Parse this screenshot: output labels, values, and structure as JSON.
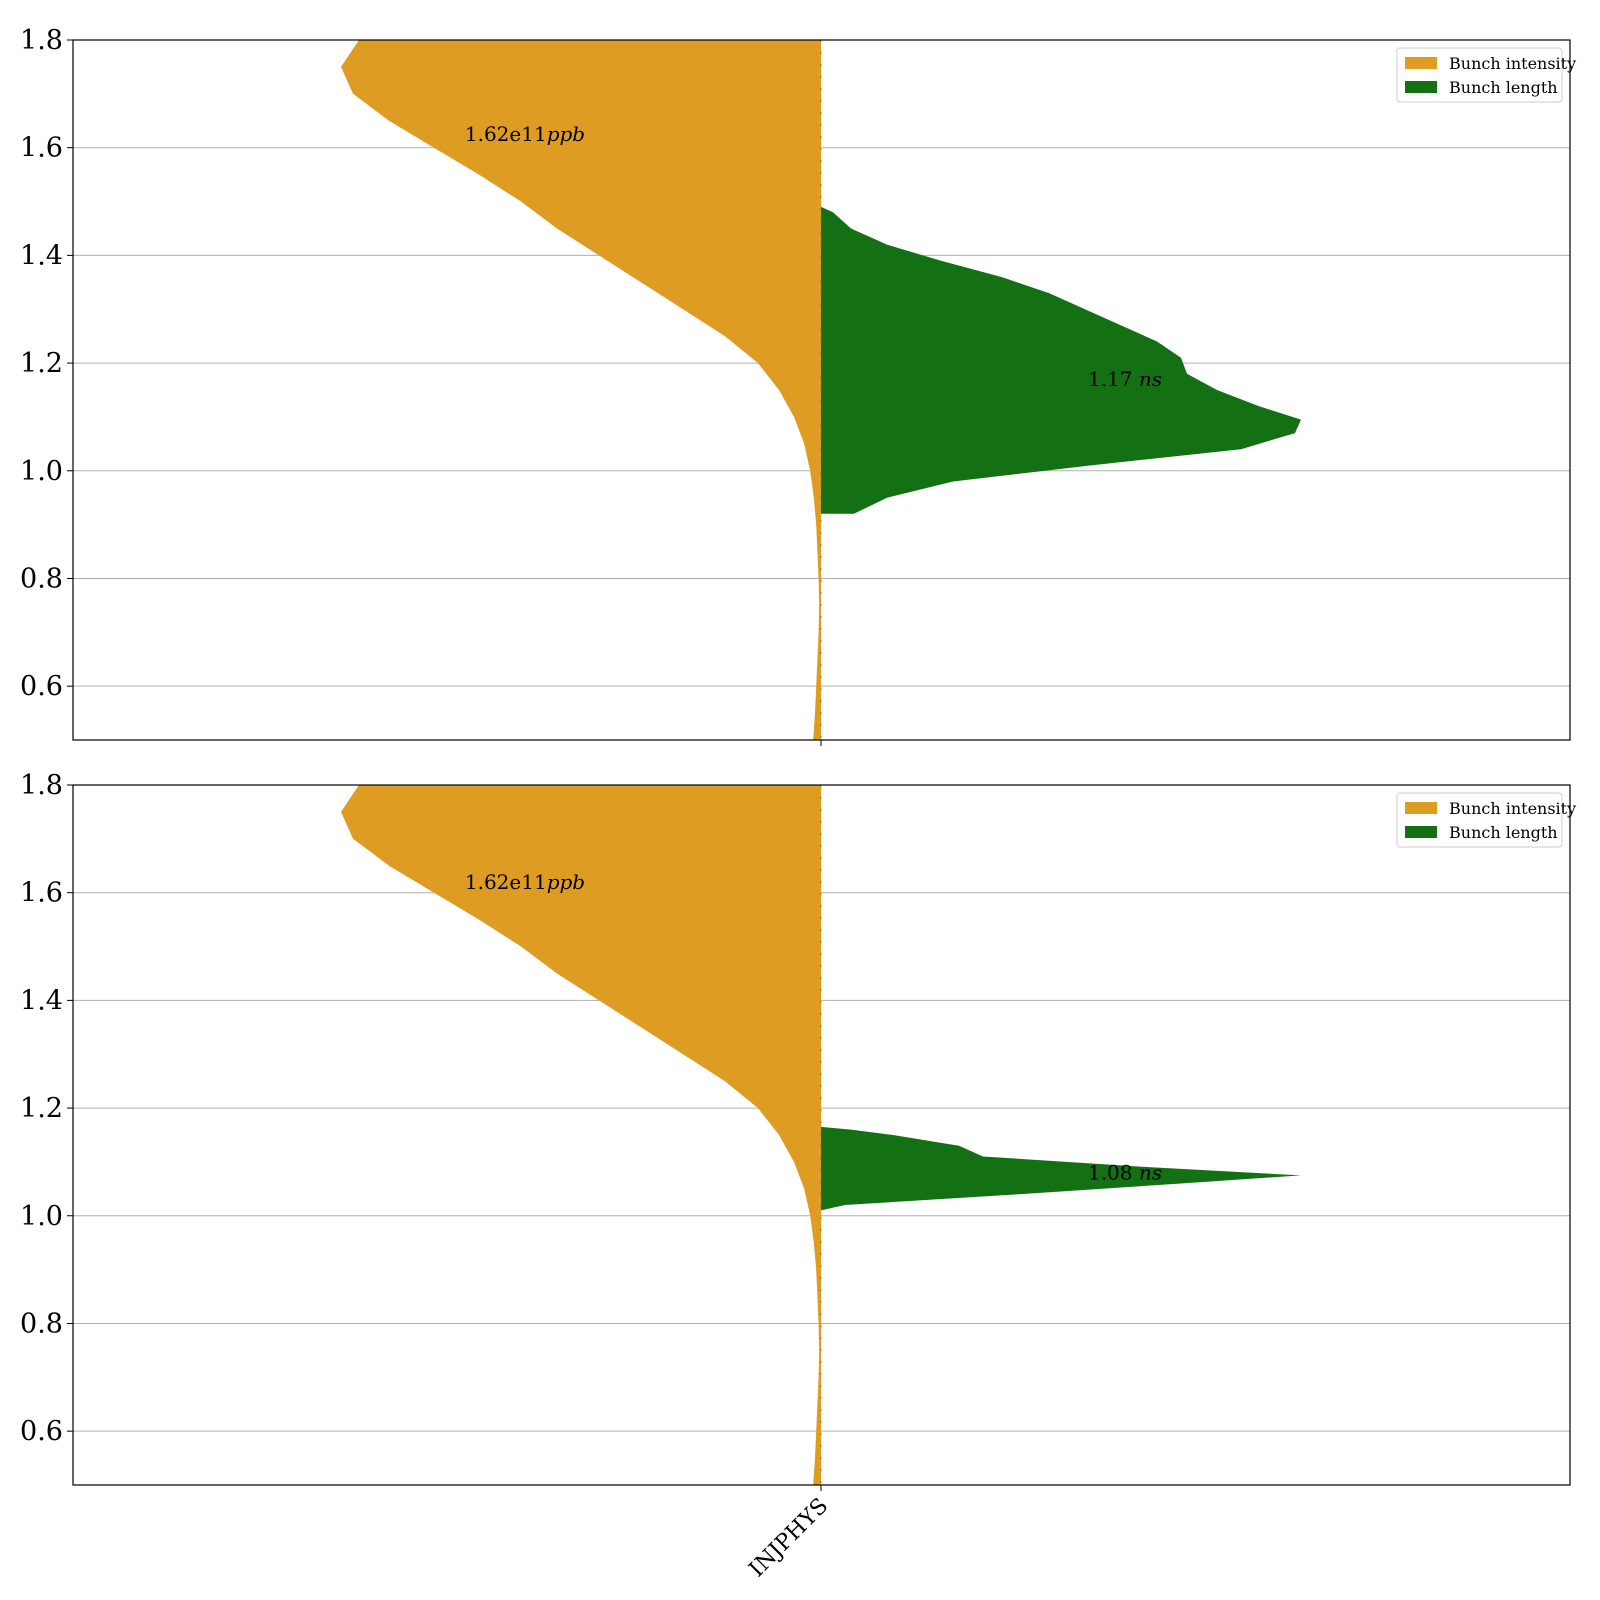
{
  "chart_data": [
    {
      "type": "violin",
      "ylim": [
        0.5,
        1.8
      ],
      "yticks": [
        "0.6",
        "0.8",
        "1.0",
        "1.2",
        "1.4",
        "1.6",
        "1.8"
      ],
      "grid": "horizontal",
      "legend_placement": "top-right",
      "category": "INJPHYS",
      "series": [
        {
          "name": "Bunch intensity",
          "side": "left",
          "color": "#de9c22",
          "annotation": {
            "value": "1.62e11",
            "unit": "ppb",
            "y": 1.625
          },
          "profile_y": [
            0.5,
            0.55,
            0.6,
            0.65,
            0.7,
            0.75,
            0.8,
            0.85,
            0.9,
            0.95,
            1.0,
            1.05,
            1.1,
            1.15,
            1.2,
            1.25,
            1.3,
            1.35,
            1.4,
            1.45,
            1.5,
            1.55,
            1.6,
            1.65,
            1.7,
            1.75,
            1.8
          ],
          "profile_width": [
            0.013,
            0.01,
            0.008,
            0.006,
            0.004,
            0.003,
            0.004,
            0.006,
            0.008,
            0.012,
            0.018,
            0.028,
            0.045,
            0.07,
            0.105,
            0.16,
            0.23,
            0.3,
            0.37,
            0.44,
            0.5,
            0.57,
            0.645,
            0.72,
            0.78,
            0.8,
            0.77
          ]
        },
        {
          "name": "Bunch length",
          "side": "right",
          "color": "#137114",
          "annotation": {
            "value": "1.17",
            "unit": "ns",
            "y": 1.17
          },
          "profile_y": [
            0.92,
            0.95,
            0.98,
            1.01,
            1.04,
            1.07,
            1.095,
            1.12,
            1.15,
            1.18,
            1.21,
            1.24,
            1.27,
            1.3,
            1.33,
            1.36,
            1.39,
            1.42,
            1.45,
            1.48,
            1.49
          ],
          "profile_width": [
            0.055,
            0.11,
            0.22,
            0.45,
            0.7,
            0.79,
            0.8,
            0.73,
            0.66,
            0.61,
            0.6,
            0.56,
            0.5,
            0.44,
            0.38,
            0.3,
            0.2,
            0.11,
            0.05,
            0.02,
            0.0
          ]
        }
      ]
    },
    {
      "type": "violin",
      "ylim": [
        0.5,
        1.8
      ],
      "yticks": [
        "0.6",
        "0.8",
        "1.0",
        "1.2",
        "1.4",
        "1.6",
        "1.8"
      ],
      "grid": "horizontal",
      "legend_placement": "top-right",
      "category": "INJPHYS",
      "series": [
        {
          "name": "Bunch intensity",
          "side": "left",
          "color": "#de9c22",
          "annotation": {
            "value": "1.62e11",
            "unit": "ppb",
            "y": 1.62
          },
          "profile_y": [
            0.5,
            0.55,
            0.6,
            0.65,
            0.7,
            0.75,
            0.8,
            0.85,
            0.9,
            0.95,
            1.0,
            1.05,
            1.1,
            1.15,
            1.2,
            1.25,
            1.3,
            1.35,
            1.4,
            1.45,
            1.5,
            1.55,
            1.6,
            1.65,
            1.7,
            1.75,
            1.8
          ],
          "profile_width": [
            0.013,
            0.01,
            0.008,
            0.006,
            0.004,
            0.003,
            0.004,
            0.006,
            0.008,
            0.012,
            0.018,
            0.028,
            0.045,
            0.07,
            0.105,
            0.16,
            0.23,
            0.3,
            0.37,
            0.44,
            0.5,
            0.57,
            0.645,
            0.72,
            0.78,
            0.8,
            0.77
          ]
        },
        {
          "name": "Bunch length",
          "side": "right",
          "color": "#137114",
          "annotation": {
            "value": "1.08",
            "unit": "ns",
            "y": 1.08
          },
          "profile_y": [
            1.01,
            1.02,
            1.04,
            1.06,
            1.075,
            1.09,
            1.11,
            1.13,
            1.15,
            1.16,
            1.165
          ],
          "profile_width": [
            0.0,
            0.04,
            0.33,
            0.6,
            0.8,
            0.55,
            0.27,
            0.23,
            0.12,
            0.05,
            0.0
          ]
        }
      ]
    }
  ]
}
